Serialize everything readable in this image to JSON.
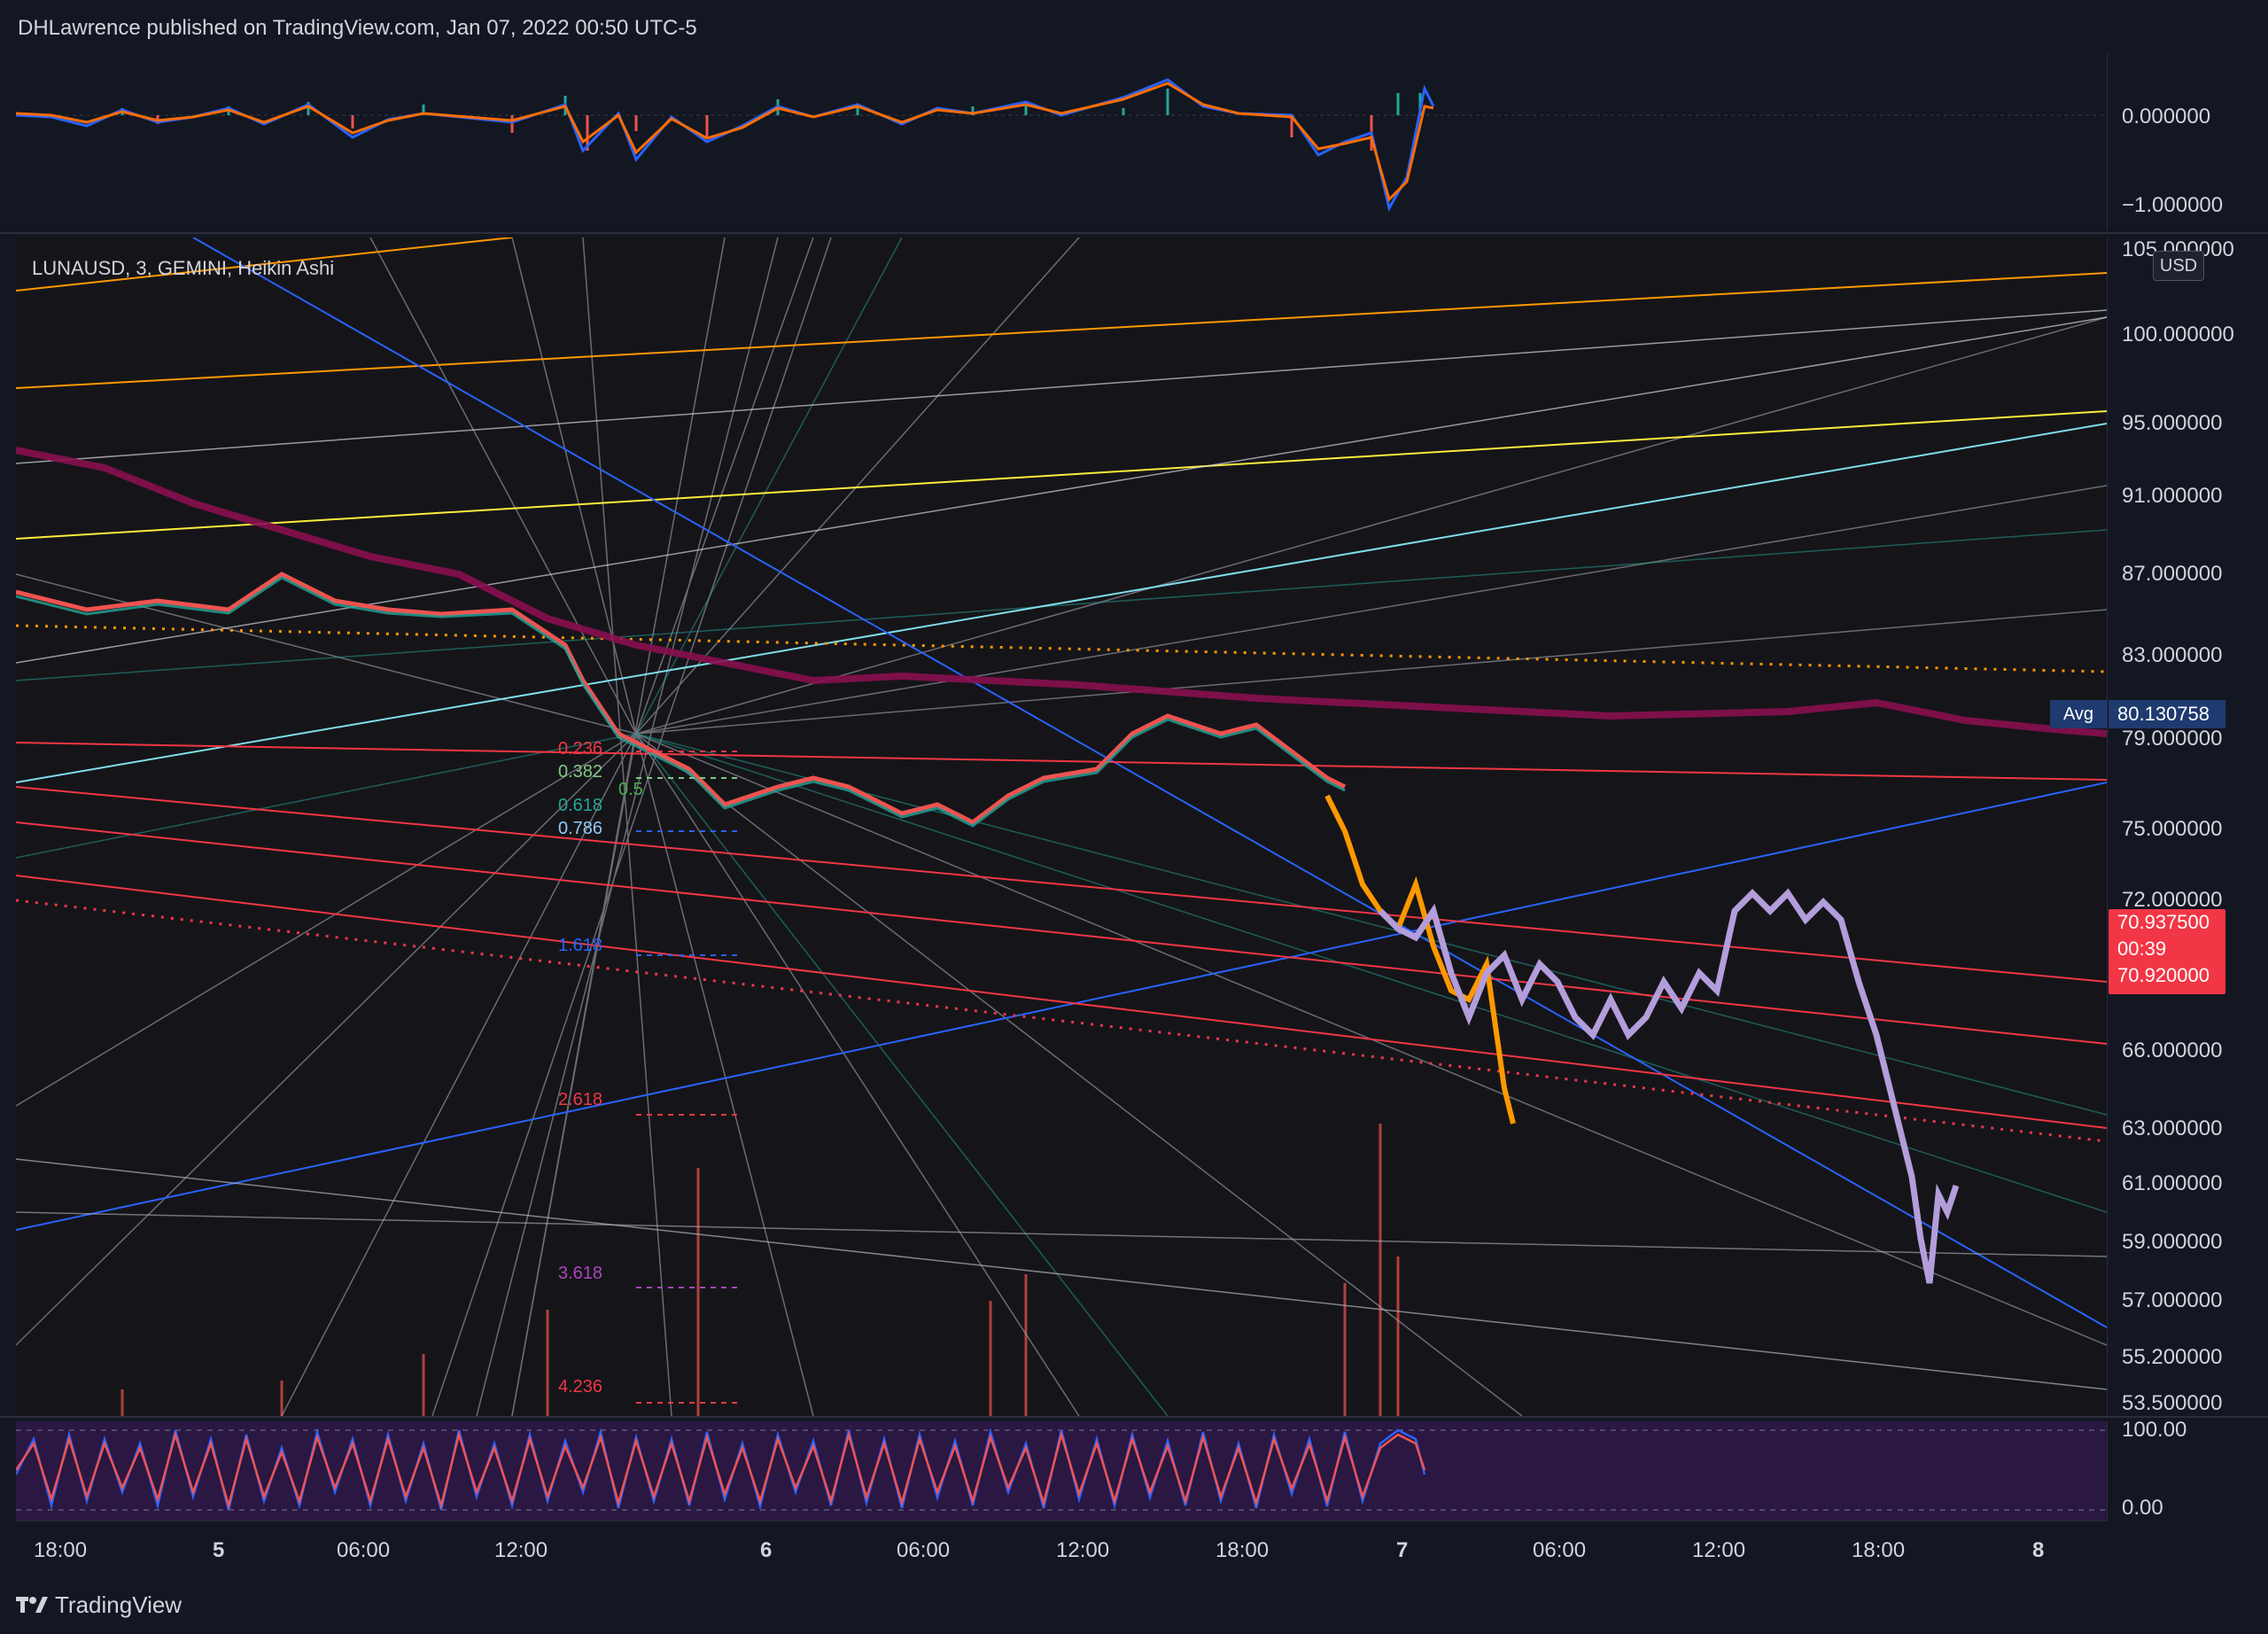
{
  "header": {
    "publisher_text": "DHLawrence published on TradingView.com, Jan 07, 2022 00:50 UTC-5"
  },
  "oscillator_pane": {
    "axis_labels": [
      "0.000000",
      "−1.000000"
    ]
  },
  "main_chart": {
    "symbol_label": "LUNAUSD, 3, GEMINI, Heikin Ashi",
    "currency": "USD",
    "price_axis_labels": [
      "105.000000",
      "100.000000",
      "95.000000",
      "91.000000",
      "87.000000",
      "83.000000",
      "79.000000",
      "75.000000",
      "72.000000",
      "66.000000",
      "63.000000",
      "61.000000",
      "59.000000",
      "57.000000",
      "55.200000",
      "53.500000"
    ],
    "avg_label": "Avg",
    "avg_value": "80.130758",
    "last_price": "70.937500",
    "countdown": "00:39",
    "bid_price": "70.920000",
    "fib_levels": [
      "0.236",
      "0.382",
      "0.5",
      "0.618",
      "0.786",
      "1.618",
      "2.618",
      "3.618",
      "4.236"
    ],
    "colors": {
      "background": "#151519",
      "up_candle": "#26a69a",
      "down_candle": "#ef5350",
      "accent_orange": "#ff9800",
      "accent_yellow": "#ffeb3b",
      "accent_pink": "#f23645",
      "accent_purple": "#b39ddb"
    }
  },
  "stoch_pane": {
    "axis_labels": [
      "100.00",
      "0.00"
    ]
  },
  "time_axis": {
    "labels": [
      "18:00",
      "5",
      "06:00",
      "12:00",
      "6",
      "06:00",
      "12:00",
      "18:00",
      "7",
      "06:00",
      "12:00",
      "18:00",
      "8"
    ]
  },
  "footer": {
    "brand": "TradingView"
  }
}
